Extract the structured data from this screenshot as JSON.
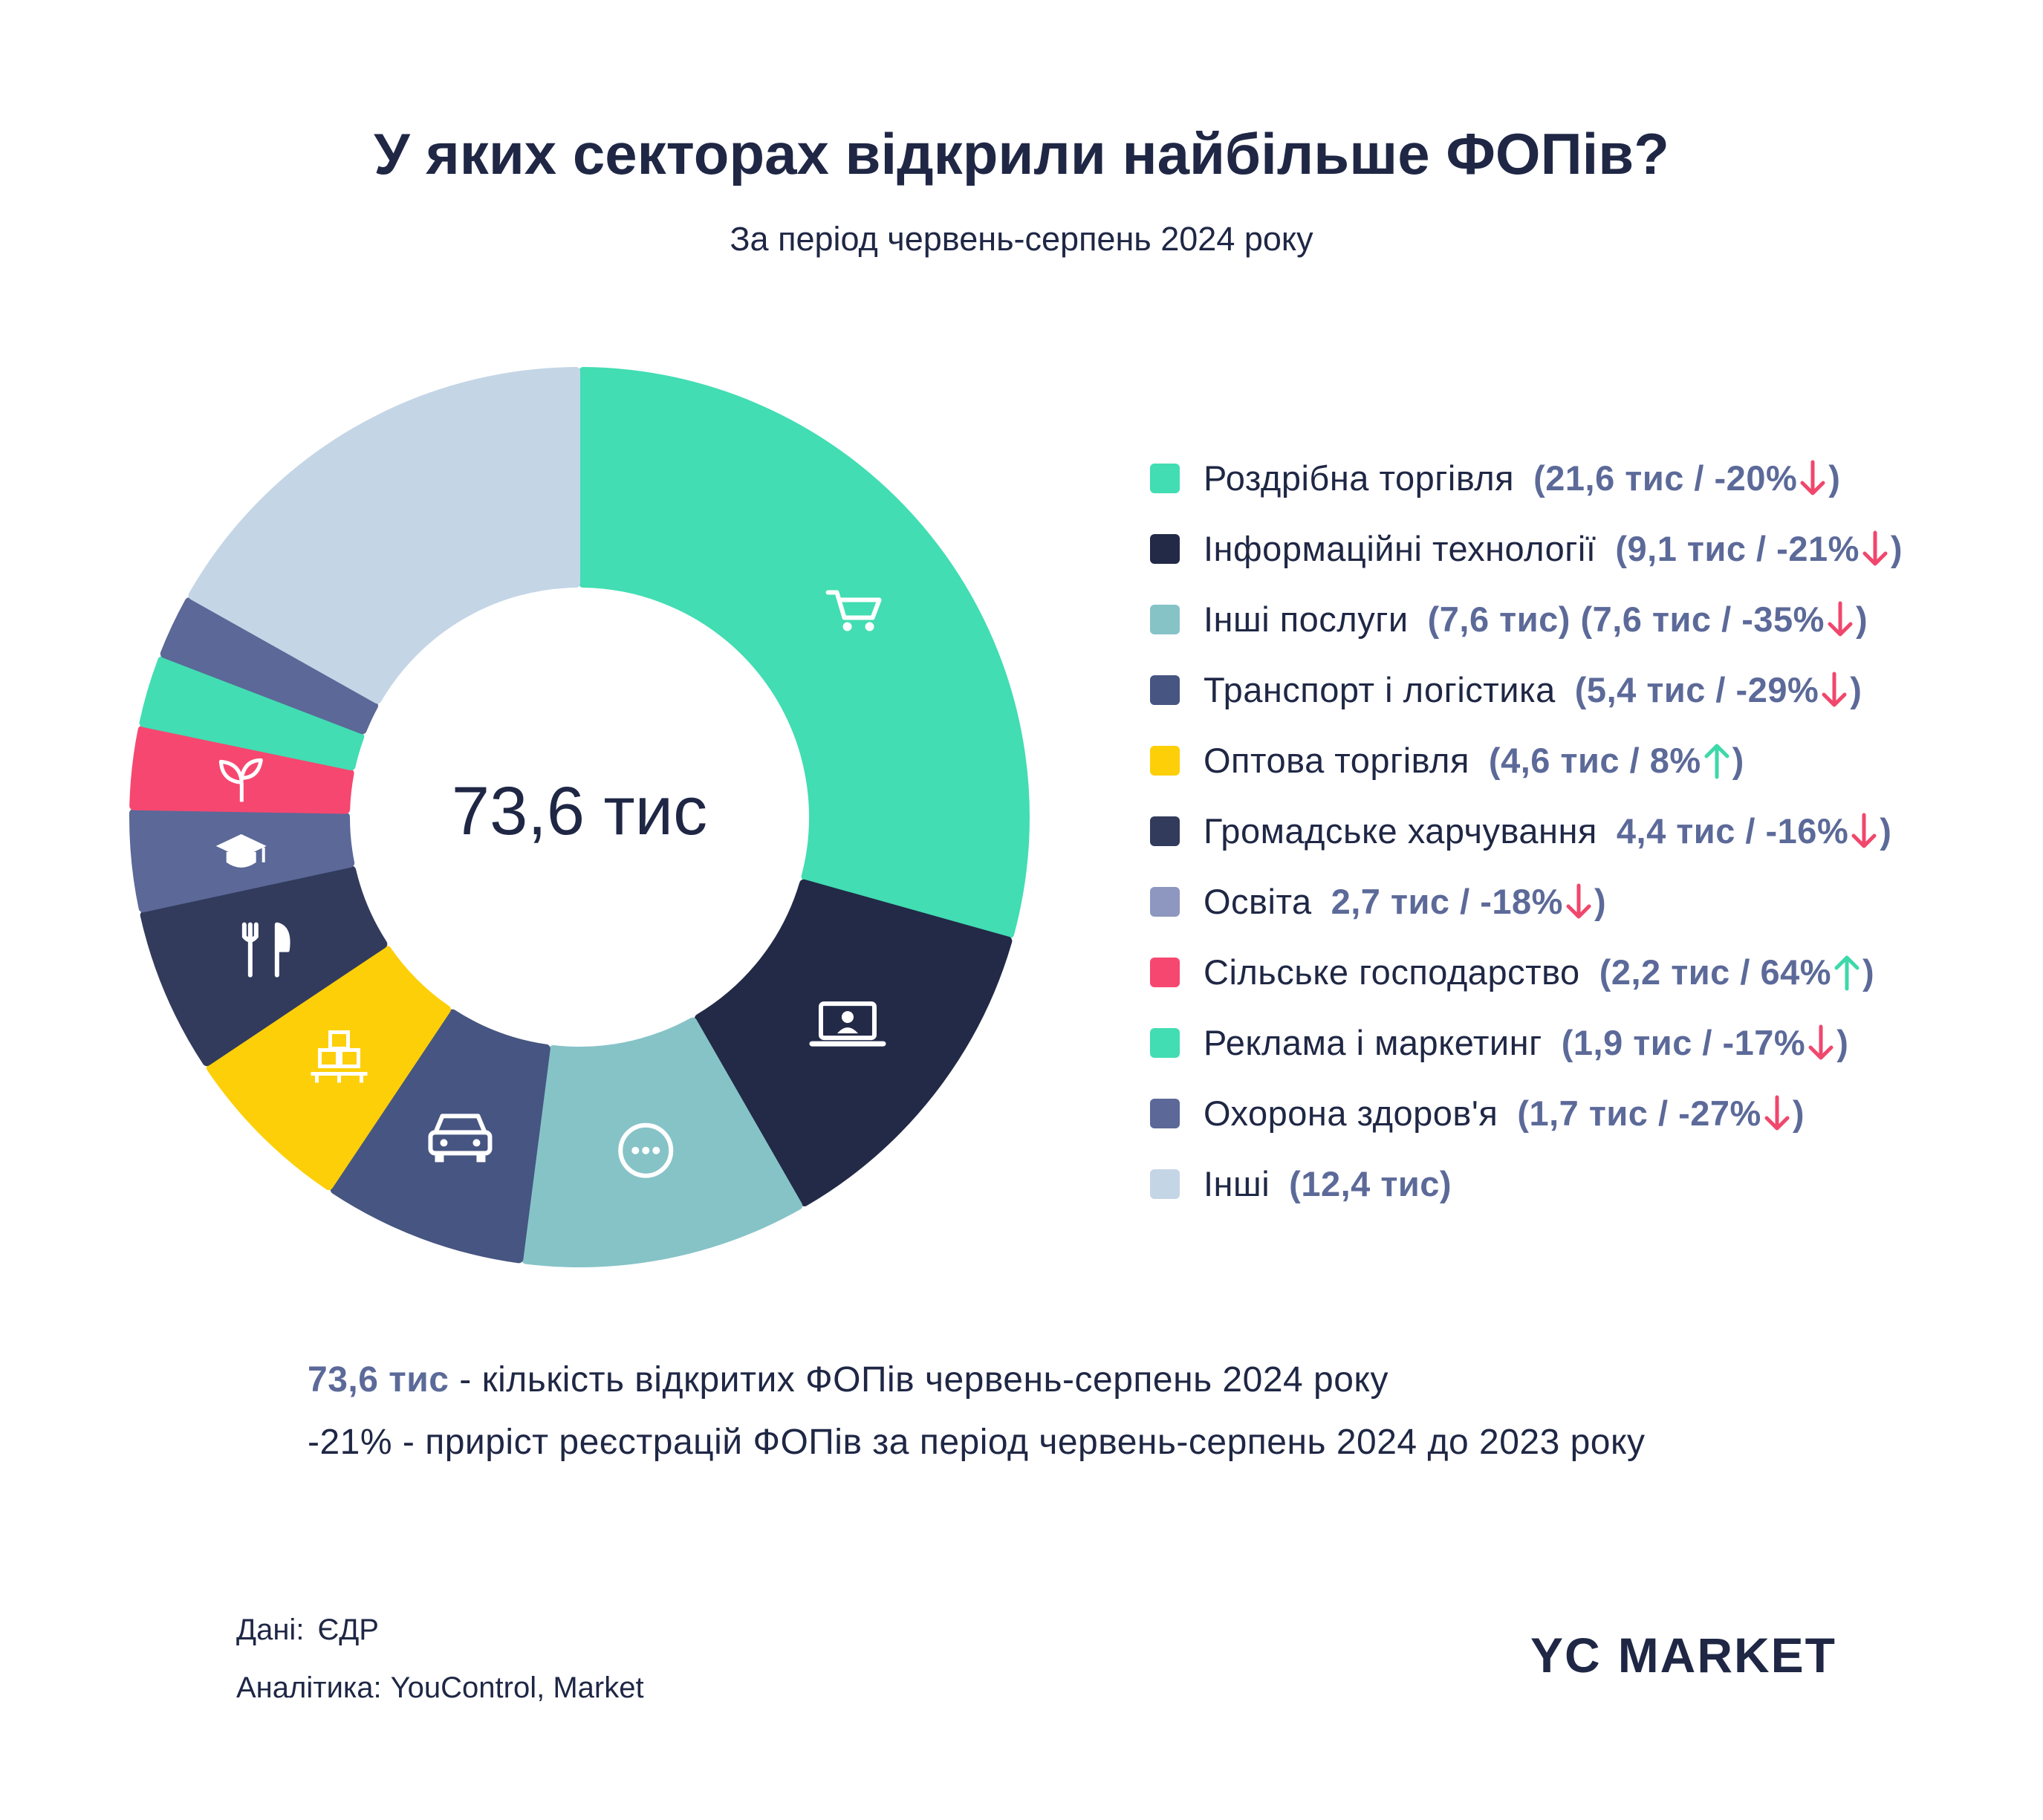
{
  "title": "У яких секторах відкрили найбільше ФОПів?",
  "subtitle": "За період червень-серпень 2024 року",
  "center_total": "73,6 тис",
  "chart_data": {
    "type": "pie",
    "title": "У яких секторах відкрили найбільше ФОПів?",
    "subtitle": "За період червень-серпень 2024 року",
    "unit": "тис",
    "total": 73.6,
    "slices": [
      {
        "label": "Роздрібна торгівля",
        "value": 21.6,
        "value_text": "(21,6 тис / -20%",
        "suffix": ")",
        "change_pct": -20,
        "trend": "down",
        "color": "#42ddb2",
        "icon": "shopping-cart-icon"
      },
      {
        "label": "Інформаційні технології",
        "value": 9.1,
        "value_text": "(9,1 тис / -21%",
        "suffix": ")",
        "change_pct": -21,
        "trend": "down",
        "color": "#222a47",
        "icon": "laptop-icon"
      },
      {
        "label": "Інші послуги",
        "value": 7.6,
        "value_text": "(7,6 тис)  (7,6 тис / -35%",
        "suffix": ")",
        "change_pct": -35,
        "trend": "down",
        "color": "#86c3c7",
        "icon": "more-dots-icon"
      },
      {
        "label": "Транспорт і логістика",
        "value": 5.4,
        "value_text": "(5,4 тис / -29%",
        "suffix": ")",
        "change_pct": -29,
        "trend": "down",
        "color": "#465581",
        "icon": "car-icon"
      },
      {
        "label": "Оптова торгівля",
        "value": 4.6,
        "value_text": "(4,6 тис / 8%",
        "suffix": ")",
        "change_pct": 8,
        "trend": "up",
        "color": "#fdcf09",
        "icon": "boxes-icon"
      },
      {
        "label": "Громадське харчування",
        "value": 4.4,
        "value_text": "4,4 тис / -16%",
        "suffix": ")",
        "change_pct": -16,
        "trend": "down",
        "color": "#323b5c",
        "icon": "cutlery-icon"
      },
      {
        "label": "Освіта",
        "value": 2.7,
        "value_text": "2,7 тис / -18%",
        "suffix": ")",
        "change_pct": -18,
        "trend": "down",
        "color": "#5b6898",
        "icon": "graduation-cap-icon"
      },
      {
        "label": "Сільське господарство",
        "value": 2.2,
        "value_text": "(2,2 тис / 64%",
        "suffix": ")",
        "change_pct": 64,
        "trend": "up",
        "color": "#f64770",
        "icon": "sprout-icon"
      },
      {
        "label": "Реклама і маркетинг",
        "value": 1.9,
        "value_text": "(1,9 тис / -17%",
        "suffix": ")",
        "change_pct": -17,
        "trend": "down",
        "color": "#42ddb2",
        "icon": ""
      },
      {
        "label": "Охорона здоров'я",
        "value": 1.7,
        "value_text": "(1,7 тис / -27%",
        "suffix": ")",
        "change_pct": -27,
        "trend": "down",
        "color": "#5b6898",
        "icon": ""
      },
      {
        "label": "Інші",
        "value": 12.4,
        "value_text": "(12,4 тис)",
        "suffix": "",
        "change_pct": null,
        "trend": "",
        "color": "#c4d5e6",
        "icon": ""
      }
    ]
  },
  "legend_swatch_colors": [
    "#42ddb2",
    "#222a47",
    "#86c3c7",
    "#465581",
    "#fdcf09",
    "#323b5c",
    "#8d97bf",
    "#f64770",
    "#42ddb2",
    "#5b6898",
    "#c4d5e6"
  ],
  "trend_colors": {
    "down": "#f0476d",
    "up": "#3ed8a9"
  },
  "notes": {
    "line1_highlight": "73,6 тис",
    "line1_text": " - кількість відкритих ФОПів червень-серпень 2024 року",
    "line2_text": "-21% - приріст реєстрацій ФОПів за період червень-серпень 2024 до 2023 року"
  },
  "footer": {
    "data_label": "Дані:",
    "data_value": "ЄДР",
    "analytics_label": "Аналітика:",
    "analytics_value": "YouControl, Market"
  },
  "logo": {
    "mark": "YC",
    "text": "MARKET"
  }
}
